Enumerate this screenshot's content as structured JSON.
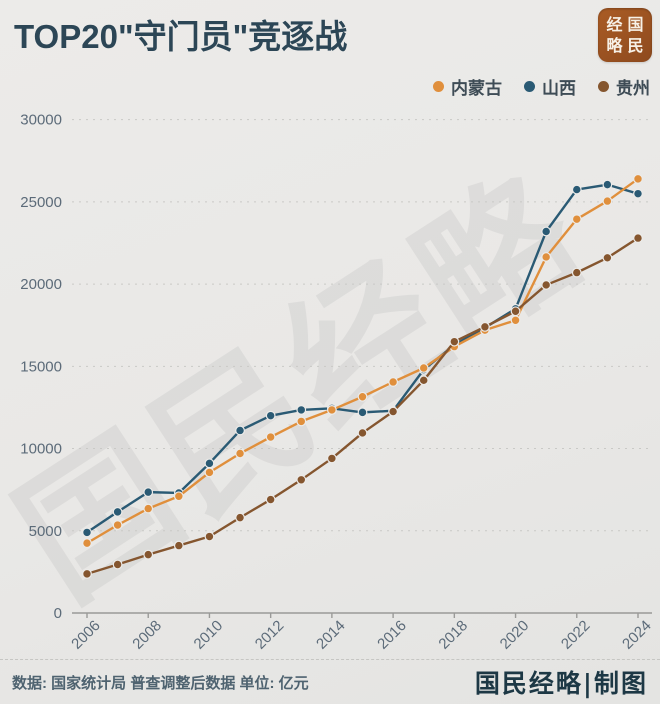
{
  "title": "TOP20\"守门员\"竞逐战",
  "badge": {
    "grid": [
      "经",
      "国",
      "略",
      "民"
    ],
    "bg_color": "#9a5222"
  },
  "watermark": "国民经略",
  "footer": {
    "source": "数据: 国家统计局 普查调整后数据  单位: 亿元",
    "credit": "国民经略|制图"
  },
  "chart_data": {
    "type": "line",
    "title": "TOP20\"守门员\"竞逐战",
    "unit": "亿元",
    "x": [
      2006,
      2007,
      2008,
      2009,
      2010,
      2011,
      2012,
      2013,
      2014,
      2015,
      2016,
      2017,
      2018,
      2019,
      2020,
      2021,
      2022,
      2023,
      2024
    ],
    "series": [
      {
        "name": "内蒙古",
        "color": "#E08F3C",
        "values": [
          4250,
          5350,
          6350,
          7100,
          8550,
          9700,
          10700,
          11650,
          12350,
          13150,
          14050,
          14900,
          16200,
          17200,
          17800,
          21650,
          23950,
          25050,
          26400
        ]
      },
      {
        "name": "山西",
        "color": "#2A5A74",
        "values": [
          4900,
          6150,
          7350,
          7300,
          9100,
          11100,
          12000,
          12350,
          12450,
          12200,
          12300,
          14800,
          16300,
          17350,
          18500,
          23200,
          25750,
          26050,
          25500
        ]
      },
      {
        "name": "贵州",
        "color": "#85562F",
        "values": [
          2380,
          2950,
          3550,
          4100,
          4650,
          5800,
          6900,
          8100,
          9400,
          10950,
          12250,
          14150,
          16500,
          17400,
          18350,
          19950,
          20700,
          21600,
          22800
        ]
      }
    ],
    "ylim": [
      0,
      30000
    ],
    "ytick_step": 5000,
    "xtick_step": 2,
    "grid": "horizontal-dashed",
    "legend_position": "top-right",
    "axis_color": "#9a9a98",
    "tick_label_color": "#5c6b79"
  }
}
